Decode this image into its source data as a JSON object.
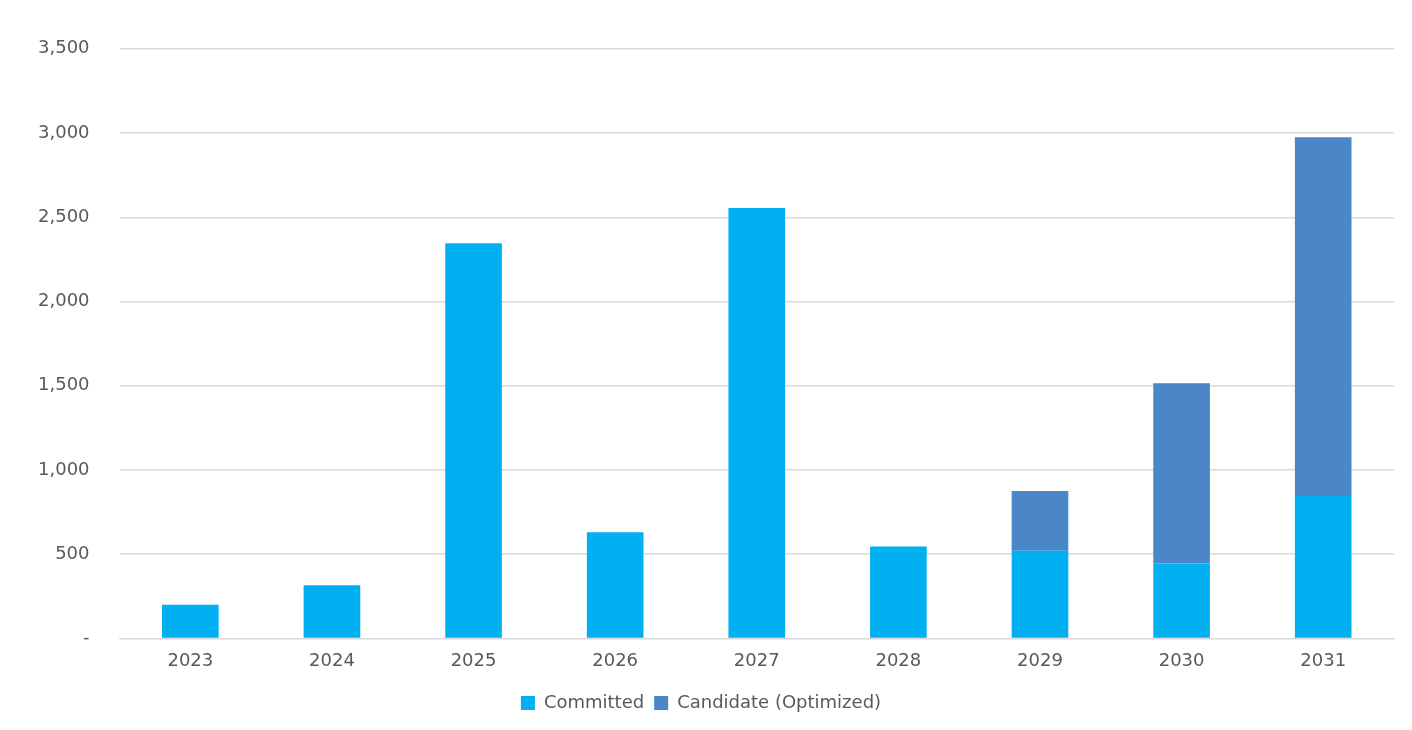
{
  "chart_data": {
    "type": "bar",
    "stacked": true,
    "categories": [
      "2023",
      "2024",
      "2025",
      "2026",
      "2027",
      "2028",
      "2029",
      "2030",
      "2031"
    ],
    "series": [
      {
        "name": "Committed",
        "color": "#00b0f0",
        "values": [
          200,
          315,
          2345,
          630,
          2555,
          545,
          520,
          445,
          845
        ]
      },
      {
        "name": "Candidate (Optimized)",
        "color": "#4a86c8",
        "values": [
          null,
          null,
          null,
          null,
          null,
          null,
          355,
          1070,
          2130
        ]
      }
    ],
    "ylim": [
      0,
      3500
    ],
    "yticks": [
      {
        "value": 0,
        "label": "-"
      },
      {
        "value": 500,
        "label": "500"
      },
      {
        "value": 1000,
        "label": "1,000"
      },
      {
        "value": 1500,
        "label": "1,500"
      },
      {
        "value": 2000,
        "label": "2,000"
      },
      {
        "value": 2500,
        "label": "2,500"
      },
      {
        "value": 3000,
        "label": "3,000"
      },
      {
        "value": 3500,
        "label": "3,500"
      }
    ],
    "grid": "y",
    "legend": "bottom"
  }
}
